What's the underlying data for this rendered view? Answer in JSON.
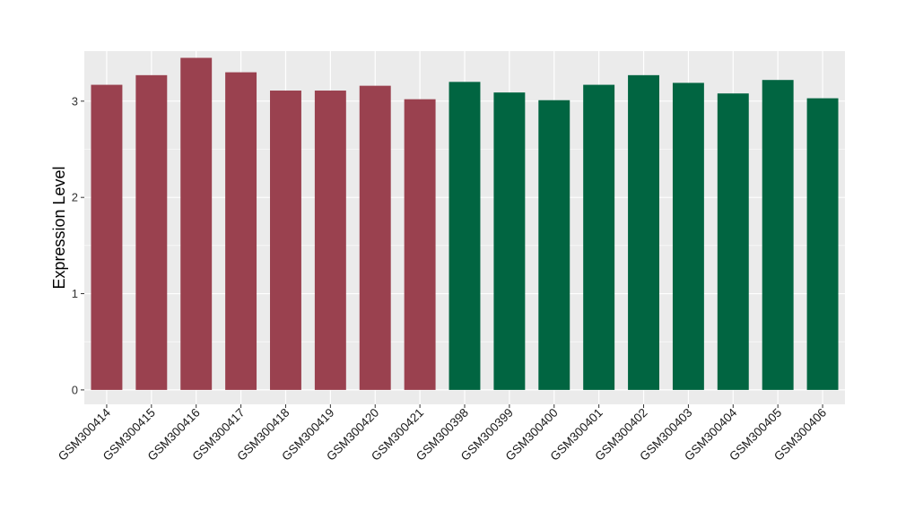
{
  "chart_data": {
    "type": "bar",
    "title": "",
    "xlabel": "",
    "ylabel": "Expression Level",
    "ylim": [
      -0.15,
      3.52
    ],
    "yticks": [
      0,
      1,
      2,
      3
    ],
    "ytick_labels": [
      "0",
      "1",
      "2",
      "3"
    ],
    "grid": true,
    "legend": "none",
    "categories": [
      "GSM300414",
      "GSM300415",
      "GSM300416",
      "GSM300417",
      "GSM300418",
      "GSM300419",
      "GSM300420",
      "GSM300421",
      "GSM300398",
      "GSM300399",
      "GSM300400",
      "GSM300401",
      "GSM300402",
      "GSM300403",
      "GSM300404",
      "GSM300405",
      "GSM300406"
    ],
    "values": [
      3.17,
      3.27,
      3.45,
      3.3,
      3.11,
      3.11,
      3.16,
      3.02,
      3.2,
      3.09,
      3.01,
      3.17,
      3.27,
      3.19,
      3.08,
      3.22,
      3.03
    ],
    "group": [
      0,
      0,
      0,
      0,
      0,
      0,
      0,
      0,
      1,
      1,
      1,
      1,
      1,
      1,
      1,
      1,
      1
    ],
    "colors": [
      "#9a414f",
      "#016541"
    ],
    "panel_background": "#ebebeb",
    "grid_color": "#ffffff"
  }
}
